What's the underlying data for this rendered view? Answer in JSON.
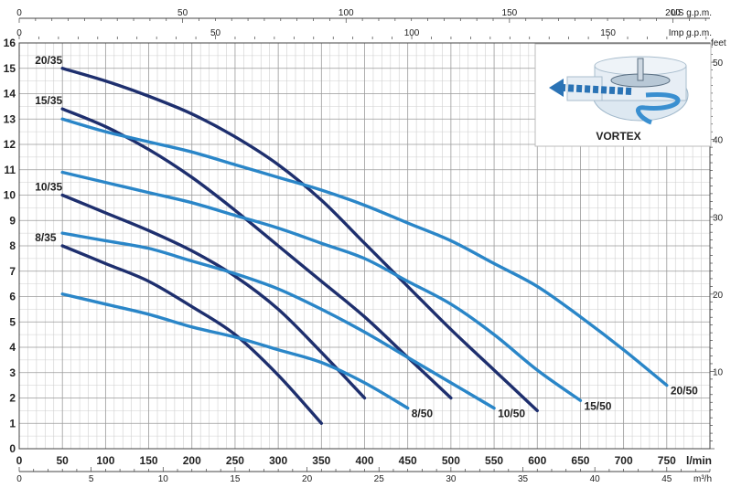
{
  "chart_data": {
    "type": "line",
    "axes": {
      "flow_lmin": {
        "label": "l/min",
        "ticks": [
          0,
          50,
          100,
          150,
          200,
          250,
          300,
          350,
          400,
          450,
          500,
          550,
          600,
          650,
          700,
          750
        ],
        "range": [
          0,
          800
        ]
      },
      "head_m": {
        "ticks": [
          0,
          1,
          2,
          3,
          4,
          5,
          6,
          7,
          8,
          9,
          10,
          11,
          12,
          13,
          14,
          15,
          16
        ],
        "range": [
          0,
          16
        ]
      },
      "us_gpm": {
        "label": "US g.p.m.",
        "ticks": [
          0,
          50,
          100,
          150,
          200
        ]
      },
      "imp_gpm": {
        "label": "Imp g.p.m.",
        "ticks": [
          0,
          50,
          100,
          150
        ]
      },
      "m3h": {
        "label": "m³/h",
        "ticks": [
          0,
          5,
          10,
          15,
          20,
          25,
          30,
          35,
          40,
          45
        ]
      },
      "feet": {
        "label": "feet",
        "ticks": [
          10,
          20,
          30,
          40,
          50
        ]
      }
    },
    "series": [
      {
        "name": "20/35",
        "color": "#1e2f6e",
        "x": [
          50,
          100,
          150,
          200,
          250,
          300,
          350,
          400,
          450,
          500,
          550,
          600
        ],
        "y": [
          15.0,
          14.5,
          13.9,
          13.2,
          12.3,
          11.2,
          9.8,
          8.1,
          6.4,
          4.7,
          3.1,
          1.5
        ]
      },
      {
        "name": "15/35",
        "color": "#1e2f6e",
        "x": [
          50,
          100,
          150,
          200,
          250,
          300,
          350,
          400,
          450,
          500
        ],
        "y": [
          13.4,
          12.7,
          11.8,
          10.7,
          9.4,
          8.0,
          6.6,
          5.2,
          3.6,
          2.0
        ]
      },
      {
        "name": "10/35",
        "color": "#1e2f6e",
        "x": [
          50,
          100,
          150,
          200,
          250,
          300,
          350,
          400
        ],
        "y": [
          10.0,
          9.3,
          8.6,
          7.8,
          6.8,
          5.5,
          3.8,
          2.0
        ]
      },
      {
        "name": "8/35",
        "color": "#1e2f6e",
        "x": [
          50,
          100,
          150,
          200,
          250,
          300,
          350
        ],
        "y": [
          8.0,
          7.3,
          6.6,
          5.6,
          4.5,
          2.9,
          1.0
        ]
      },
      {
        "name": "20/50",
        "color": "#2a86c8",
        "x": [
          50,
          100,
          150,
          200,
          250,
          300,
          350,
          400,
          450,
          500,
          550,
          600,
          650,
          700,
          750
        ],
        "y": [
          13.0,
          12.5,
          12.1,
          11.7,
          11.2,
          10.7,
          10.2,
          9.6,
          8.9,
          8.2,
          7.3,
          6.4,
          5.2,
          3.9,
          2.5
        ]
      },
      {
        "name": "15/50",
        "color": "#2a86c8",
        "x": [
          50,
          100,
          150,
          200,
          250,
          300,
          350,
          400,
          450,
          500,
          550,
          600,
          650
        ],
        "y": [
          10.9,
          10.5,
          10.1,
          9.7,
          9.2,
          8.7,
          8.1,
          7.5,
          6.6,
          5.7,
          4.5,
          3.1,
          1.9
        ]
      },
      {
        "name": "10/50",
        "color": "#2a86c8",
        "x": [
          50,
          100,
          150,
          200,
          250,
          300,
          350,
          400,
          450,
          500,
          550
        ],
        "y": [
          8.5,
          8.2,
          7.9,
          7.4,
          6.9,
          6.3,
          5.5,
          4.6,
          3.6,
          2.6,
          1.6
        ]
      },
      {
        "name": "8/50",
        "color": "#2a86c8",
        "x": [
          50,
          100,
          150,
          200,
          250,
          300,
          350,
          400,
          450
        ],
        "y": [
          6.1,
          5.7,
          5.3,
          4.8,
          4.4,
          3.9,
          3.4,
          2.6,
          1.6
        ]
      }
    ],
    "inset": {
      "caption": "VORTEX"
    }
  }
}
